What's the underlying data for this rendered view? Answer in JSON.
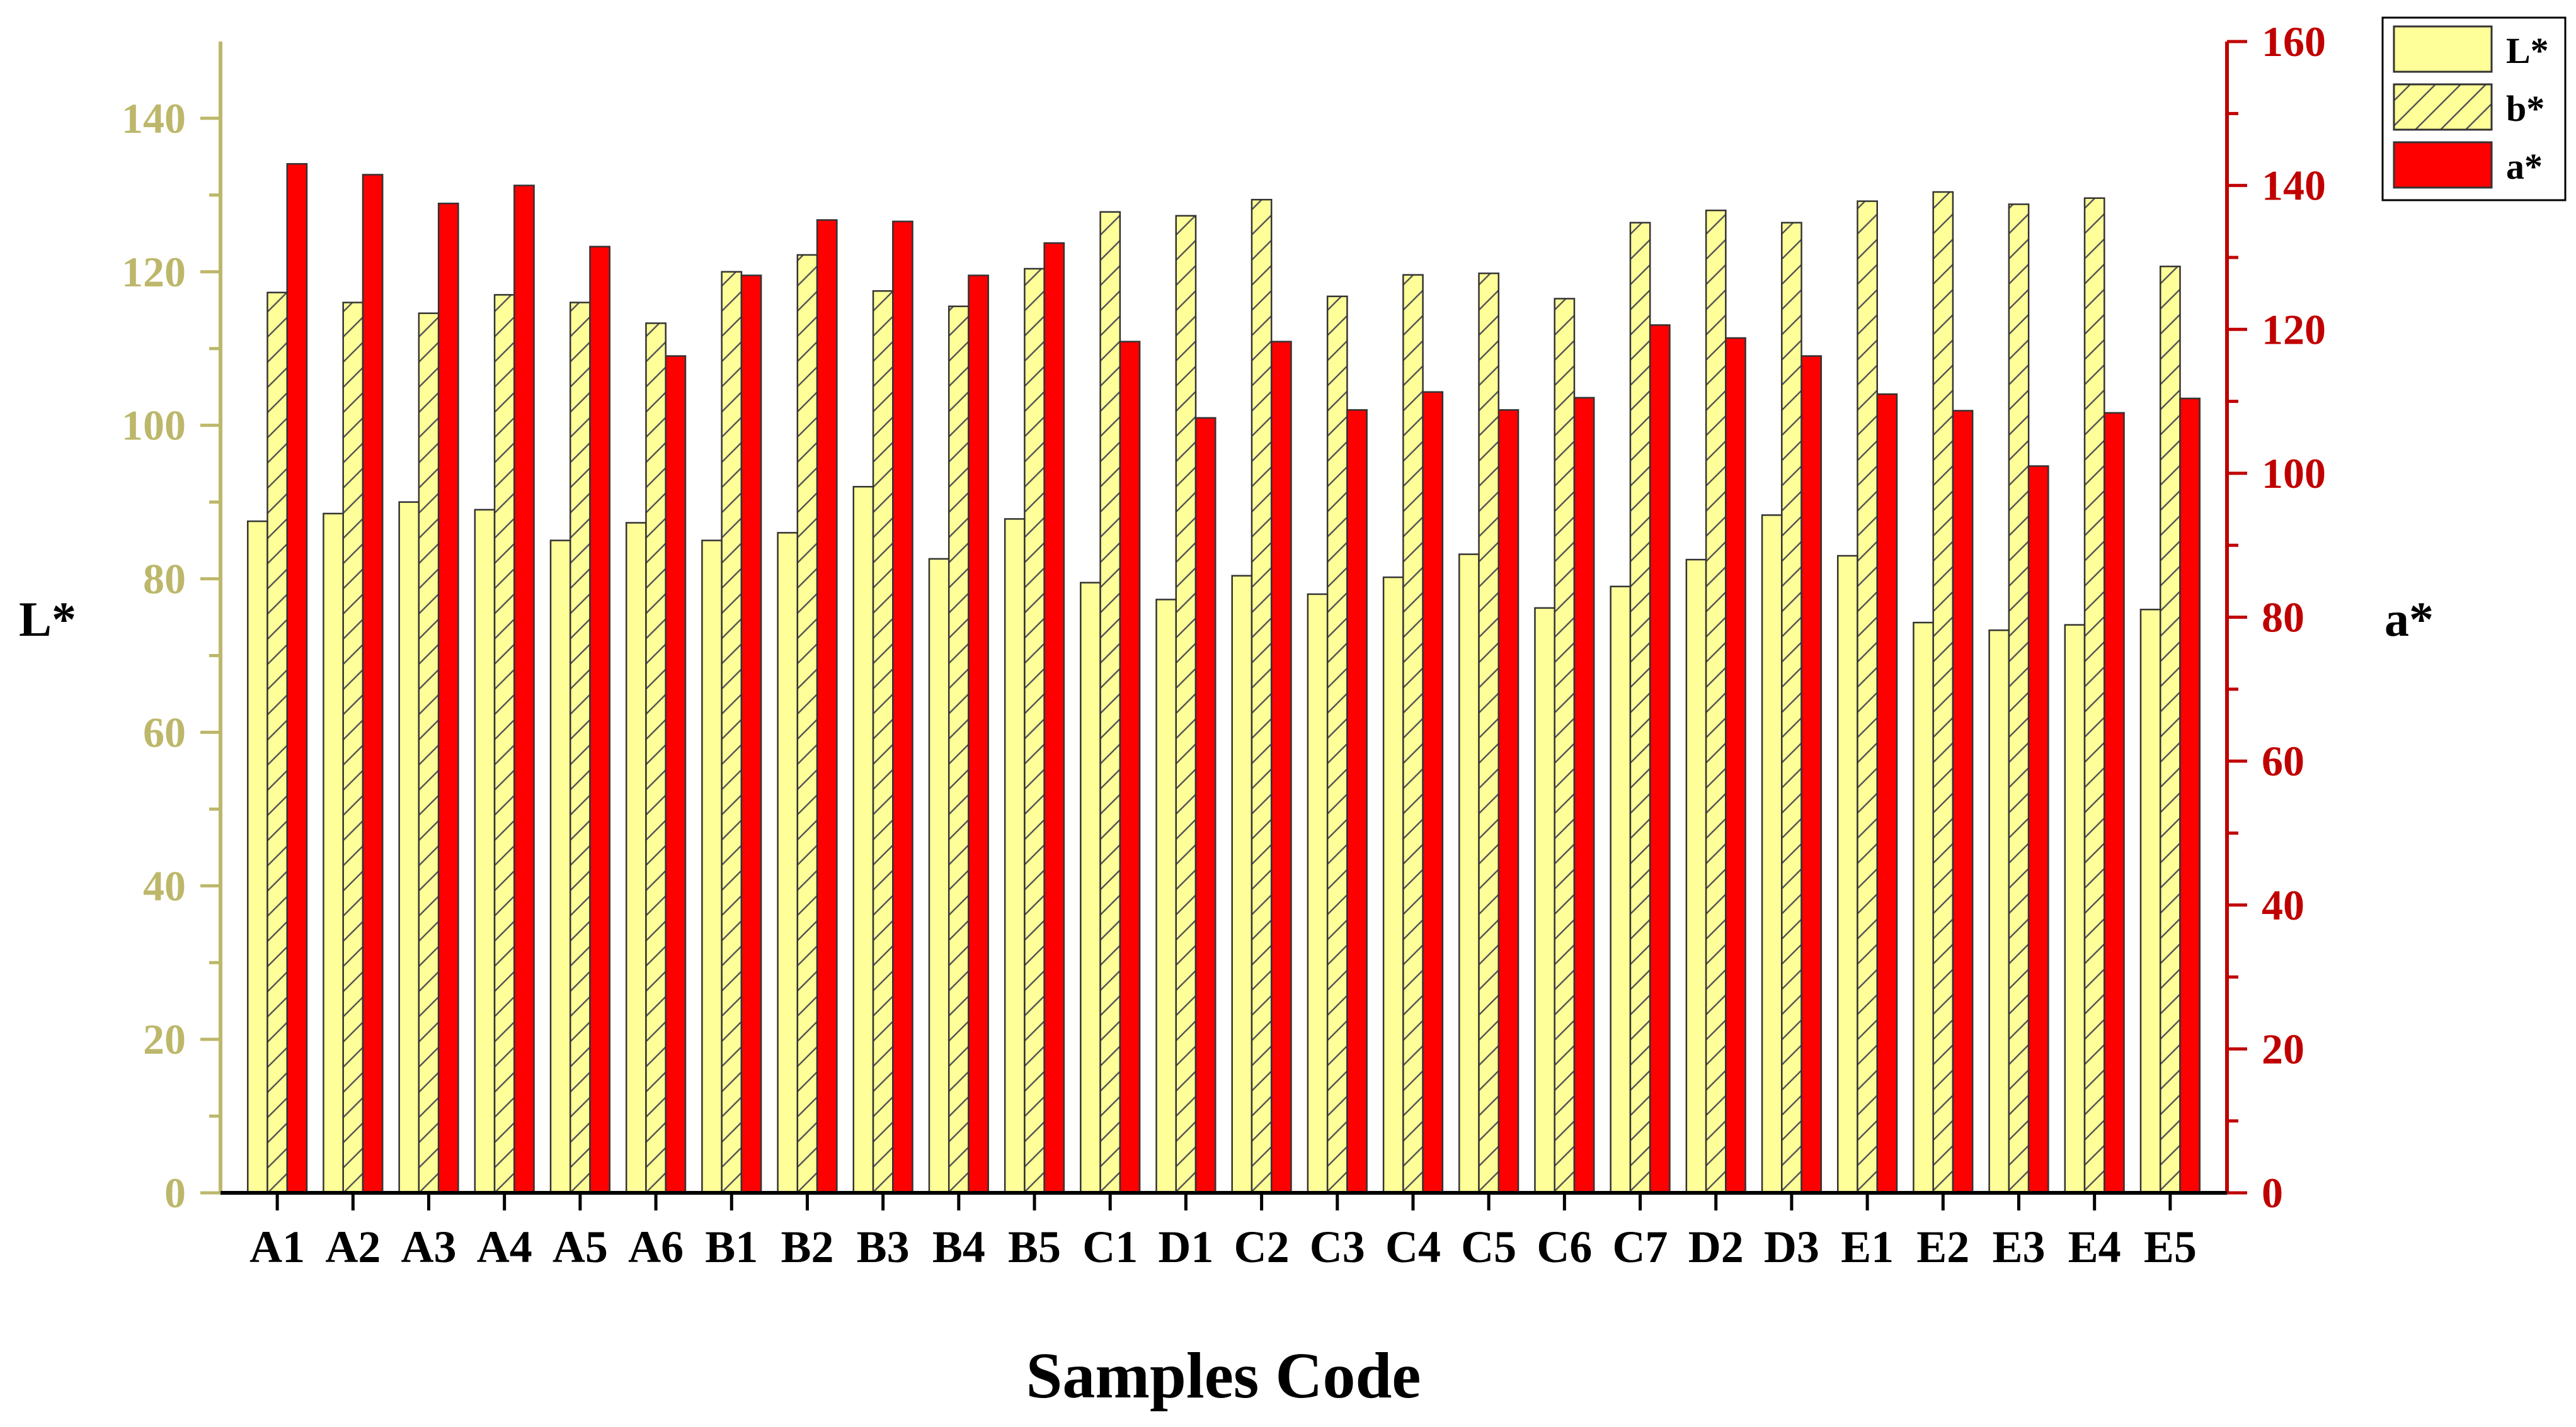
{
  "colors": {
    "left_axis": "#BDB76B",
    "right_axis": "#C00000",
    "bar_yellow": "#FFFF99",
    "bar_red": "#FF0000",
    "bar_stroke": "#333333",
    "hatch": "#555555"
  },
  "chart_data": {
    "type": "bar",
    "title": "",
    "xlabel": "Samples Code",
    "ylabel_left": "L*",
    "ylabel_right": "a*",
    "ylim_left": [
      0,
      150
    ],
    "ylim_right": [
      0,
      160
    ],
    "yticks_left": [
      "0",
      "20",
      "40",
      "60",
      "80",
      "100",
      "120",
      "140"
    ],
    "yticks_right": [
      "0",
      "20",
      "40",
      "60",
      "80",
      "100",
      "120",
      "140",
      "160"
    ],
    "categories": [
      "A1",
      "A2",
      "A3",
      "A4",
      "A5",
      "A6",
      "B1",
      "B2",
      "B3",
      "B4",
      "B5",
      "C1",
      "D1",
      "C2",
      "C3",
      "C4",
      "C5",
      "C6",
      "C7",
      "D2",
      "D3",
      "E1",
      "E2",
      "E3",
      "E4",
      "E5"
    ],
    "legend": [
      {
        "label": "L*",
        "style": "plain-yellow"
      },
      {
        "label": "b*",
        "style": "hatched-yellow"
      },
      {
        "label": "a*",
        "style": "solid-red"
      }
    ],
    "series": [
      {
        "name": "L*",
        "axis": "left",
        "values": [
          87.5,
          88.5,
          90,
          89,
          85,
          87.3,
          85,
          86,
          92,
          82.6,
          87.8,
          79.5,
          77.3,
          80.4,
          78,
          80.2,
          83.2,
          76.2,
          79,
          82.5,
          88.3,
          83,
          74.3,
          73.3,
          74,
          76
        ]
      },
      {
        "name": "b*",
        "axis": "left",
        "values": [
          117.3,
          116,
          114.6,
          117,
          116,
          113.3,
          120,
          122.2,
          117.5,
          115.5,
          120.4,
          127.8,
          127.3,
          129.4,
          116.8,
          119.6,
          119.8,
          116.5,
          126.4,
          128,
          126.4,
          129.2,
          130.4,
          128.8,
          129.6,
          120.7
        ]
      },
      {
        "name": "a*",
        "axis": "right",
        "values": [
          143,
          141.5,
          137.5,
          140,
          131.5,
          116.3,
          127.5,
          135.2,
          135,
          127.5,
          132,
          118.3,
          107.7,
          118.3,
          108.8,
          111.3,
          108.8,
          110.5,
          120.6,
          118.8,
          116.3,
          111,
          108.7,
          101,
          108.4,
          110.4
        ]
      }
    ]
  }
}
